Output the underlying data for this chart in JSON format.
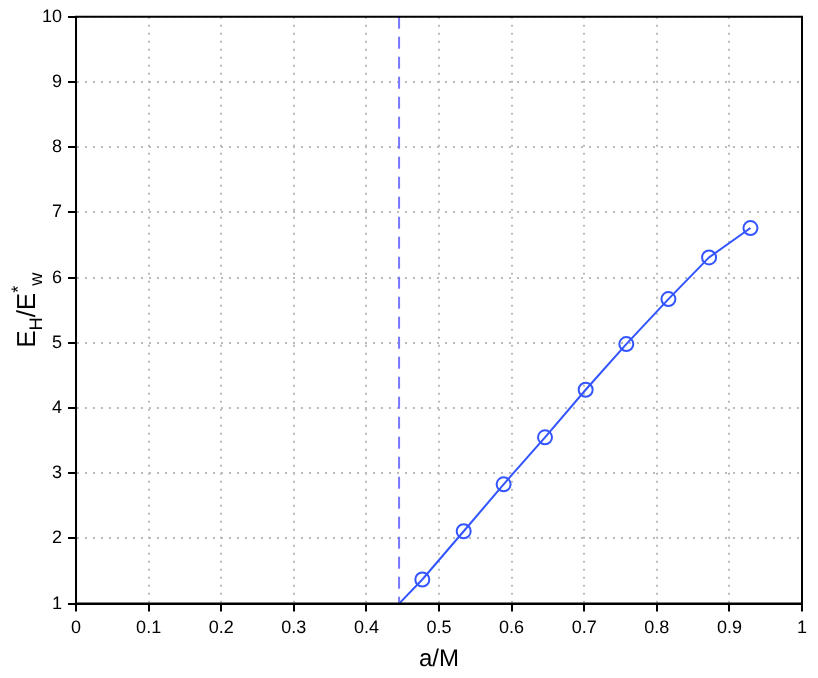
{
  "chart_data": {
    "type": "line",
    "xlabel": "a/M",
    "ylabel": "E$_{H}$/E$^{*}$$_{w}$",
    "xlim": [
      0,
      1
    ],
    "xticks": [
      0,
      0.1,
      0.2,
      0.3,
      0.4,
      0.5,
      0.6,
      0.7,
      0.8,
      0.9,
      1
    ],
    "ylim": [
      1,
      10
    ],
    "yticks": [
      1,
      2,
      3,
      4,
      5,
      6,
      7,
      8,
      9,
      10
    ],
    "grid": true,
    "legend": false,
    "series": [
      {
        "color": "#3355ff",
        "x": [
          0.445,
          0.477
        ],
        "values": [
          1,
          1.37
        ]
      },
      {
        "color": "#3355ff",
        "marker": "circle",
        "x": [
          0.477,
          0.534,
          0.589,
          0.646,
          0.702,
          0.758,
          0.816,
          0.872,
          0.929
        ],
        "values": [
          1.37,
          2.11,
          2.83,
          3.55,
          4.28,
          4.98,
          5.67,
          6.31,
          6.76
        ]
      }
    ],
    "ref_lines": [
      {
        "axis": "x",
        "value": 0.445,
        "color": "#7777ff",
        "line_style": "dashed"
      }
    ]
  }
}
